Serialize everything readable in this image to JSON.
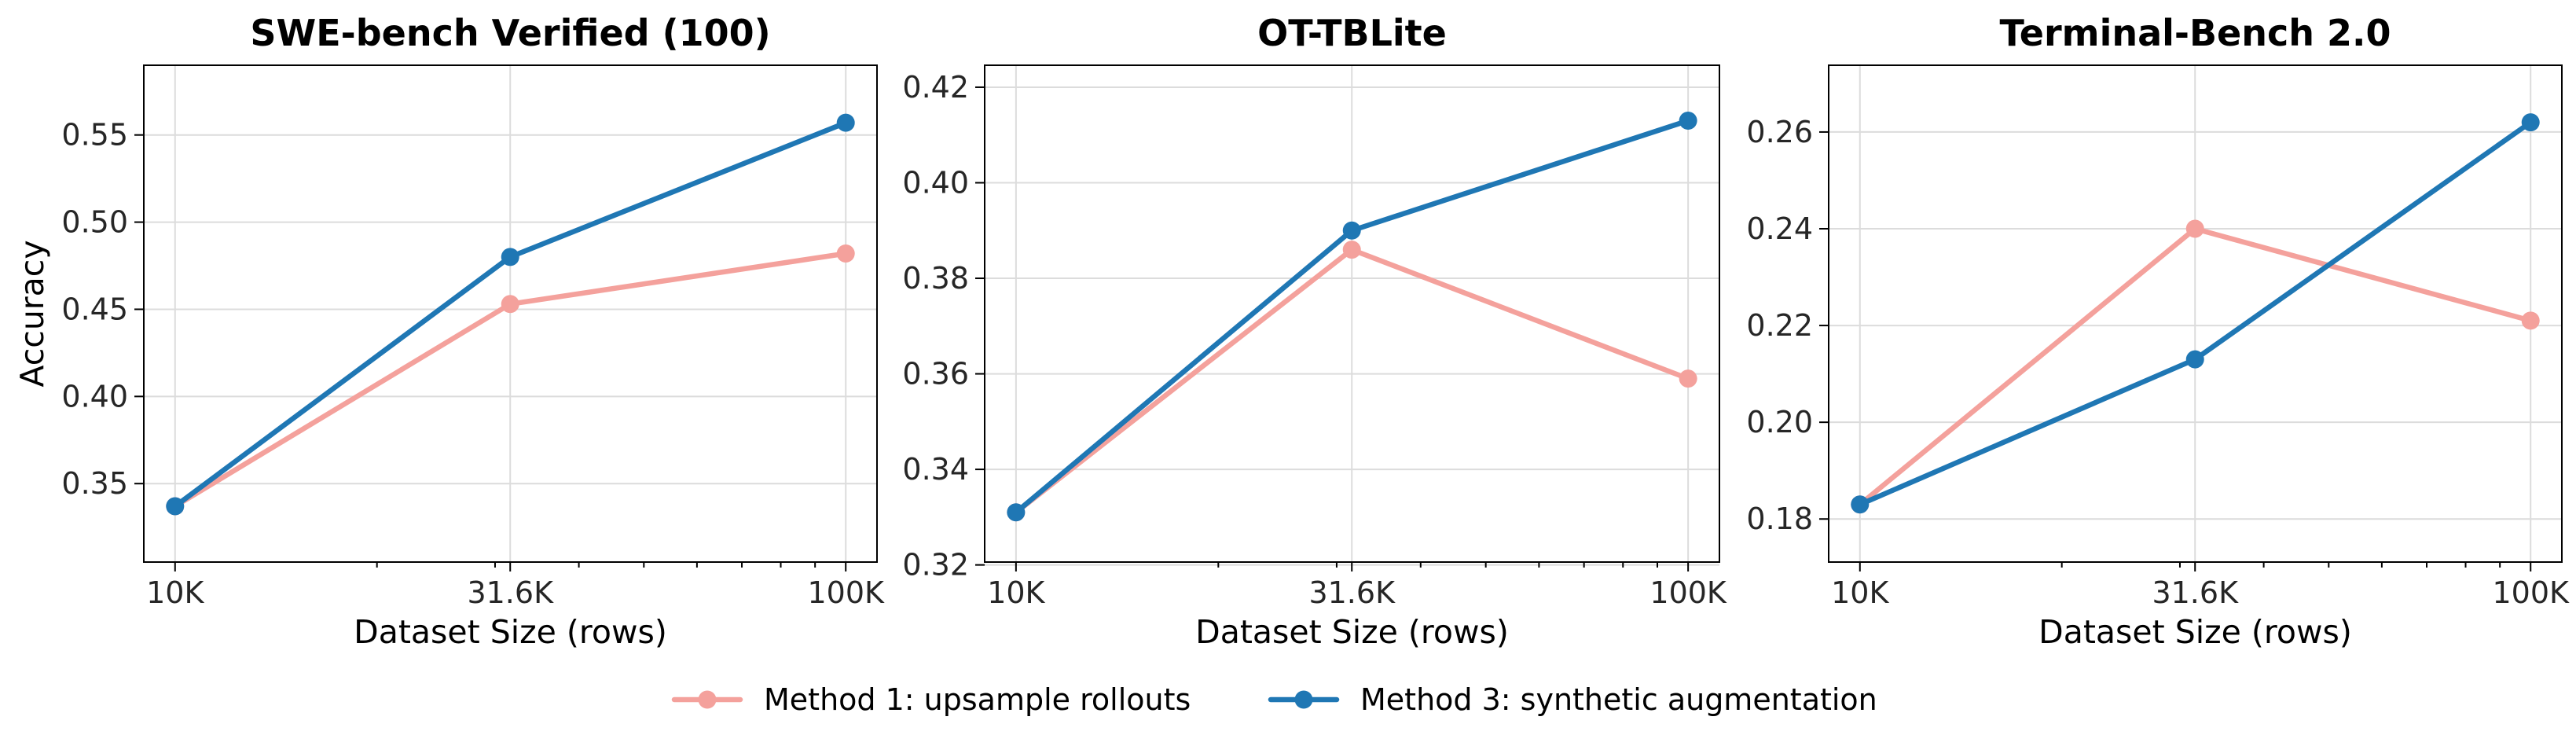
{
  "legend": {
    "items": [
      {
        "label": "Method 1: upsample rollouts",
        "color": "#f4a19c"
      },
      {
        "label": "Method 3: synthetic augmentation",
        "color": "#1f77b4"
      }
    ]
  },
  "chart_data": [
    {
      "type": "line",
      "title": "SWE-bench Verified (100)",
      "xlabel": "Dataset Size (rows)",
      "ylabel": "Accuracy",
      "x_scale": "log",
      "x": [
        10000,
        31600,
        100000
      ],
      "x_tick_labels": [
        "10K",
        "31.6K",
        "100K"
      ],
      "ylim": [
        0.305,
        0.59
      ],
      "y_ticks": [
        0.35,
        0.4,
        0.45,
        0.5,
        0.55
      ],
      "y_tick_labels": [
        "0.35",
        "0.40",
        "0.45",
        "0.50",
        "0.55"
      ],
      "grid": true,
      "series": [
        {
          "name": "Method 1: upsample rollouts",
          "color": "#f4a19c",
          "values": [
            0.337,
            0.453,
            0.482
          ]
        },
        {
          "name": "Method 3: synthetic augmentation",
          "color": "#1f77b4",
          "values": [
            0.337,
            0.48,
            0.557
          ]
        }
      ]
    },
    {
      "type": "line",
      "title": "OT-TBLite",
      "xlabel": "Dataset Size (rows)",
      "ylabel": "",
      "x_scale": "log",
      "x": [
        10000,
        31600,
        100000
      ],
      "x_tick_labels": [
        "10K",
        "31.6K",
        "100K"
      ],
      "ylim": [
        0.3206,
        0.4246
      ],
      "y_ticks": [
        0.32,
        0.34,
        0.36,
        0.38,
        0.4,
        0.42
      ],
      "y_tick_labels": [
        "0.32",
        "0.34",
        "0.36",
        "0.38",
        "0.40",
        "0.42"
      ],
      "grid": true,
      "series": [
        {
          "name": "Method 1: upsample rollouts",
          "color": "#f4a19c",
          "values": [
            0.331,
            0.386,
            0.359
          ]
        },
        {
          "name": "Method 3: synthetic augmentation",
          "color": "#1f77b4",
          "values": [
            0.331,
            0.39,
            0.413
          ]
        }
      ]
    },
    {
      "type": "line",
      "title": "Terminal-Bench 2.0",
      "xlabel": "Dataset Size (rows)",
      "ylabel": "",
      "x_scale": "log",
      "x": [
        10000,
        31600,
        100000
      ],
      "x_tick_labels": [
        "10K",
        "31.6K",
        "100K"
      ],
      "ylim": [
        0.1711,
        0.2738
      ],
      "y_ticks": [
        0.18,
        0.2,
        0.22,
        0.24,
        0.26
      ],
      "y_tick_labels": [
        "0.18",
        "0.20",
        "0.22",
        "0.24",
        "0.26"
      ],
      "grid": true,
      "series": [
        {
          "name": "Method 1: upsample rollouts",
          "color": "#f4a19c",
          "values": [
            0.183,
            0.24,
            0.221
          ]
        },
        {
          "name": "Method 3: synthetic augmentation",
          "color": "#1f77b4",
          "values": [
            0.183,
            0.213,
            0.262
          ]
        }
      ]
    }
  ]
}
